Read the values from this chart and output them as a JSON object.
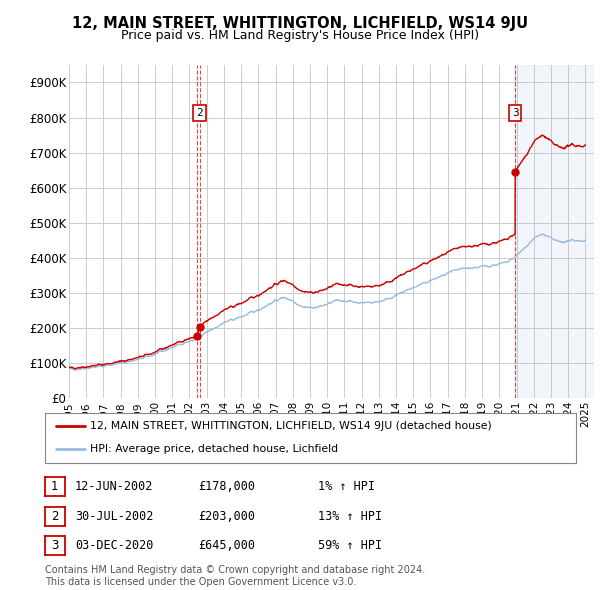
{
  "title": "12, MAIN STREET, WHITTINGTON, LICHFIELD, WS14 9JU",
  "subtitle": "Price paid vs. HM Land Registry's House Price Index (HPI)",
  "ylim": [
    0,
    950000
  ],
  "yticks": [
    0,
    100000,
    200000,
    300000,
    400000,
    500000,
    600000,
    700000,
    800000,
    900000
  ],
  "ytick_labels": [
    "£0",
    "£100K",
    "£200K",
    "£300K",
    "£400K",
    "£500K",
    "£600K",
    "£700K",
    "£800K",
    "£900K"
  ],
  "sale_prices": [
    178000,
    203000,
    645000
  ],
  "sale_labels_chart": [
    "2",
    "3"
  ],
  "transaction_color": "#cc0000",
  "hpi_color": "#99bbdd",
  "background_color": "#ffffff",
  "grid_color": "#cccccc",
  "legend_line1": "12, MAIN STREET, WHITTINGTON, LICHFIELD, WS14 9JU (detached house)",
  "legend_line2": "HPI: Average price, detached house, Lichfield",
  "table_rows": [
    [
      "1",
      "12-JUN-2002",
      "£178,000",
      "1% ↑ HPI"
    ],
    [
      "2",
      "30-JUL-2002",
      "£203,000",
      "13% ↑ HPI"
    ],
    [
      "3",
      "03-DEC-2020",
      "£645,000",
      "59% ↑ HPI"
    ]
  ],
  "footnote": "Contains HM Land Registry data © Crown copyright and database right 2024.\nThis data is licensed under the Open Government Licence v3.0.",
  "xlim_start": 1995.0,
  "xlim_end": 2025.5,
  "sale_decimal": [
    2002.458,
    2002.583,
    2020.917
  ]
}
